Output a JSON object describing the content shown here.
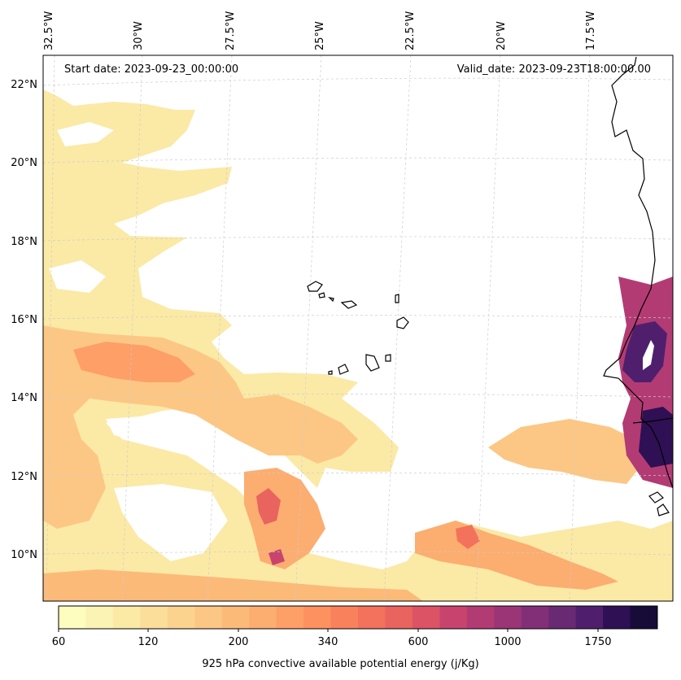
{
  "map": {
    "start_date": "Start date: 2023-09-23_00:00:00",
    "valid_date": "Valid_date: 2023-09-23T18:00:00.00",
    "lon_labels": [
      "32.5°W",
      "30°W",
      "27.5°W",
      "25°W",
      "22.5°W",
      "20°W",
      "17.5°W"
    ],
    "lat_labels": [
      "22°N",
      "20°N",
      "18°N",
      "16°N",
      "14°N",
      "12°N",
      "10°N"
    ],
    "field": "925 hPa convective available potential energy",
    "colormap": "magma_r",
    "colorscale": [
      "#fcfdbf",
      "#fbf3b3",
      "#fbe9a6",
      "#fbde9a",
      "#fbd38e",
      "#fcc784",
      "#fcba79",
      "#fcad70",
      "#fd9f67",
      "#fd9160",
      "#f9815c",
      "#f3725b",
      "#e9635f",
      "#dc5366",
      "#c8446e",
      "#b33b73",
      "#9b3576",
      "#832f77",
      "#6a2a73",
      "#4f1f6e",
      "#2f1054",
      "#170c38"
    ]
  },
  "colorbar": {
    "tick_labels": [
      "60",
      "120",
      "200",
      "340",
      "600",
      "1000",
      "1750"
    ],
    "label": "925 hPa convective available potential energy (j/Kg)"
  }
}
